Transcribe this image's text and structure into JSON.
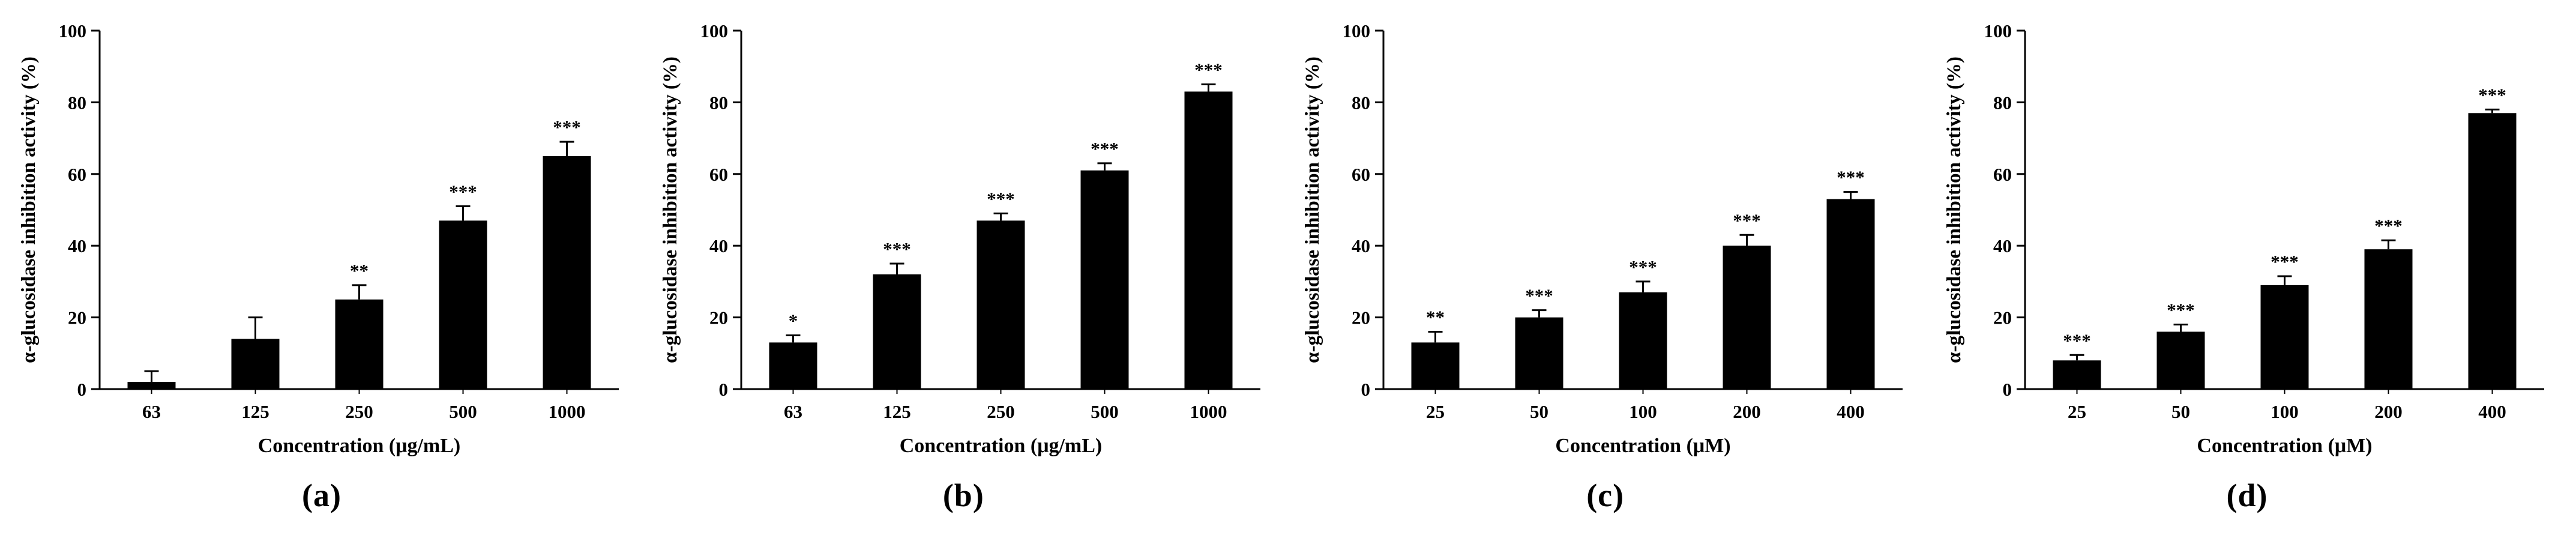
{
  "figure": {
    "background": "#ffffff",
    "bar_color": "#000000",
    "axis_color": "#000000",
    "text_color": "#000000"
  },
  "chart_data": [
    {
      "type": "bar",
      "panel_label": "(a)",
      "xlabel": "Concentration (μg/mL)",
      "ylabel": "α-glucosidase inhibition activity (%)",
      "ylim": [
        0,
        100
      ],
      "yticks": [
        0,
        20,
        40,
        60,
        80,
        100
      ],
      "categories": [
        "63",
        "125",
        "250",
        "500",
        "1000"
      ],
      "values": [
        2,
        14,
        25,
        47,
        65
      ],
      "errors": [
        3,
        6,
        4,
        4,
        4
      ],
      "significance": [
        "",
        "",
        "**",
        "***",
        "***"
      ],
      "grid": false,
      "legend": "none"
    },
    {
      "type": "bar",
      "panel_label": "(b)",
      "xlabel": "Concentration (μg/mL)",
      "ylabel": "α-glucosidase inhibition activity (%)",
      "ylim": [
        0,
        100
      ],
      "yticks": [
        0,
        20,
        40,
        60,
        80,
        100
      ],
      "categories": [
        "63",
        "125",
        "250",
        "500",
        "1000"
      ],
      "values": [
        13,
        32,
        47,
        61,
        83
      ],
      "errors": [
        2,
        3,
        2,
        2,
        2
      ],
      "significance": [
        "*",
        "***",
        "***",
        "***",
        "***"
      ],
      "grid": false,
      "legend": "none"
    },
    {
      "type": "bar",
      "panel_label": "(c)",
      "xlabel": "Concentration (μM)",
      "ylabel": "α-glucosidase inhibition activity (%)",
      "ylim": [
        0,
        100
      ],
      "yticks": [
        0,
        20,
        40,
        60,
        80,
        100
      ],
      "categories": [
        "25",
        "50",
        "100",
        "200",
        "400"
      ],
      "values": [
        13,
        20,
        27,
        40,
        53
      ],
      "errors": [
        3,
        2,
        3,
        3,
        2
      ],
      "significance": [
        "**",
        "***",
        "***",
        "***",
        "***"
      ],
      "grid": false,
      "legend": "none"
    },
    {
      "type": "bar",
      "panel_label": "(d)",
      "xlabel": "Concentration (μM)",
      "ylabel": "α-glucosidase inhibition activity (%)",
      "ylim": [
        0,
        100
      ],
      "yticks": [
        0,
        20,
        40,
        60,
        80,
        100
      ],
      "categories": [
        "25",
        "50",
        "100",
        "200",
        "400"
      ],
      "values": [
        8,
        16,
        29,
        39,
        77
      ],
      "errors": [
        1.5,
        2,
        2.5,
        2.5,
        1
      ],
      "significance": [
        "***",
        "***",
        "***",
        "***",
        "***"
      ],
      "grid": false,
      "legend": "none"
    }
  ]
}
